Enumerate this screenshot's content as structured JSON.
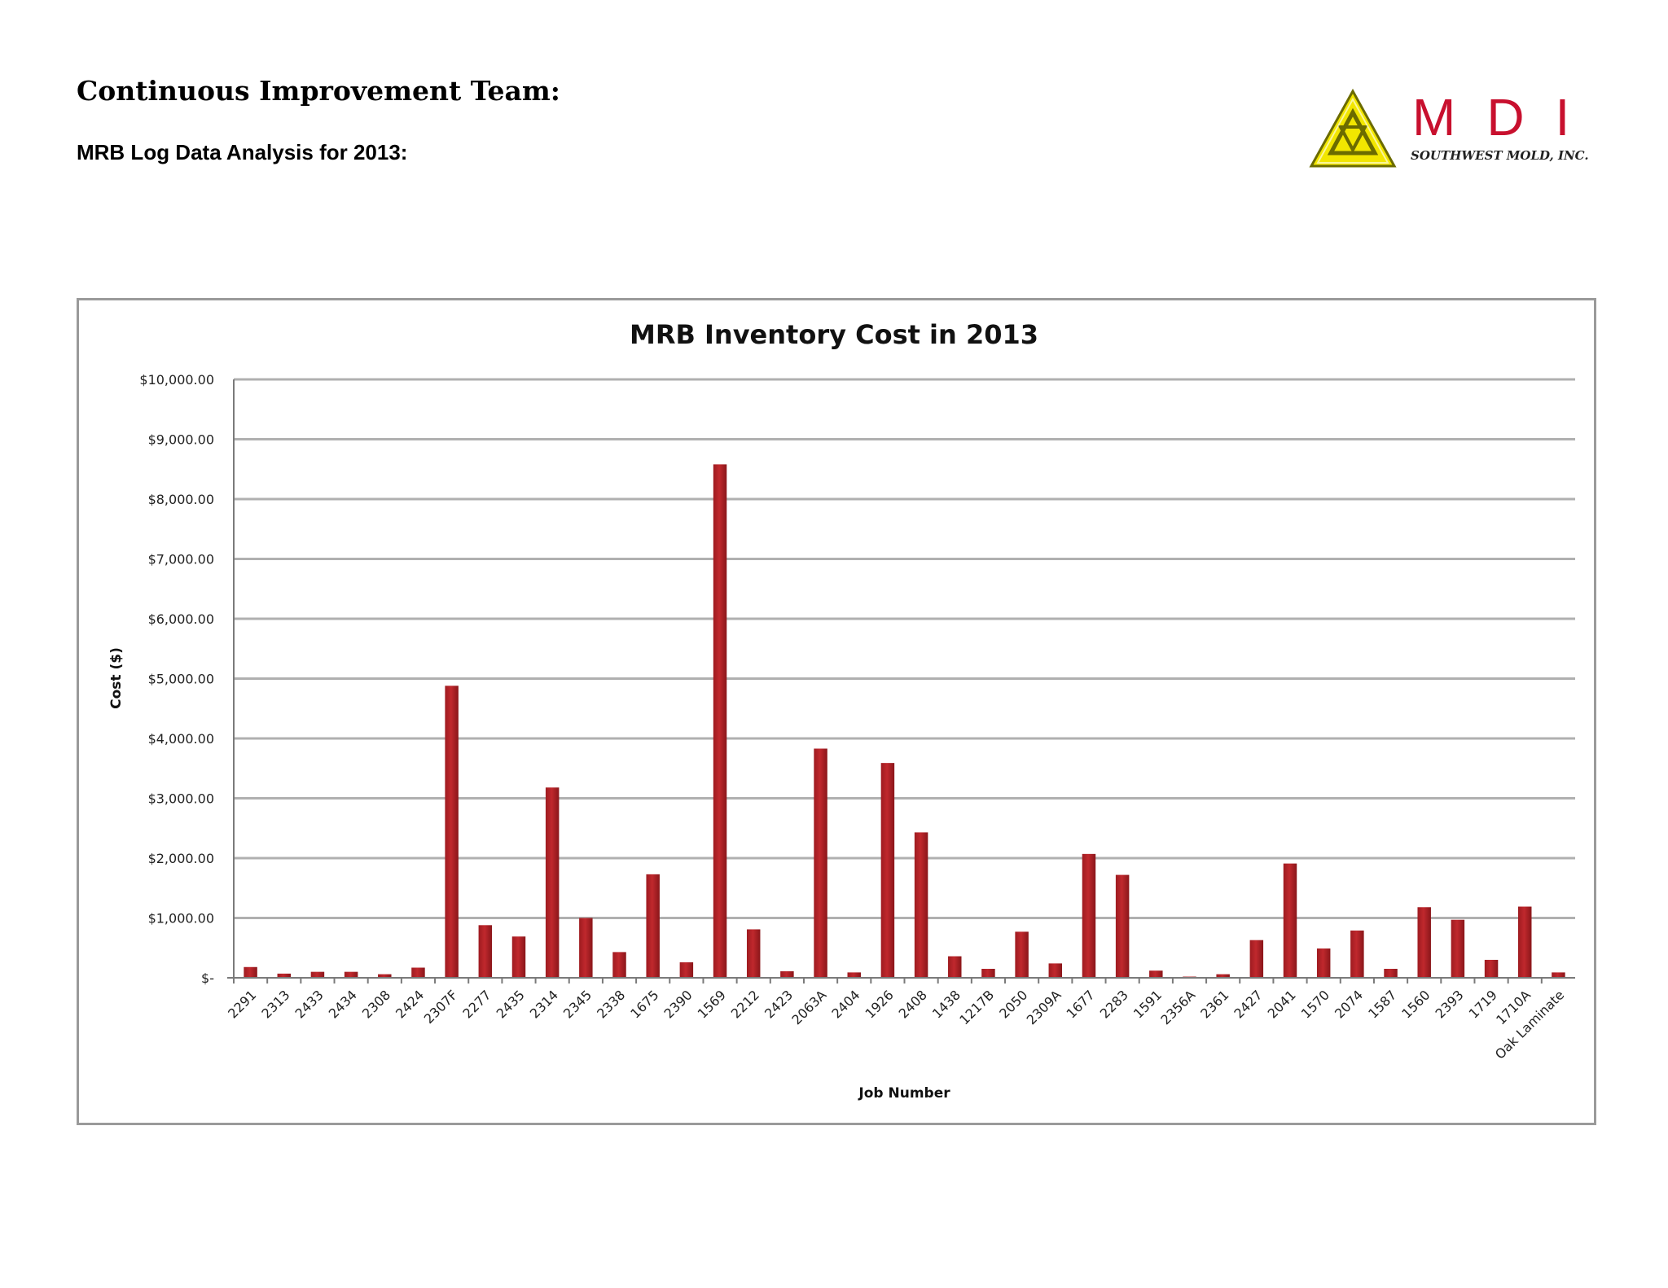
{
  "header": {
    "title": "Continuous Improvement Team:",
    "subtitle": "MRB Log Data Analysis for 2013:"
  },
  "logo": {
    "letters": "MDI",
    "company": "SOUTHWEST MOLD, INC."
  },
  "colors": {
    "bar": "#c0282d",
    "grid": "#b0b0b0",
    "frame": "#9a9a9a",
    "logo_red": "#c8102e",
    "logo_yellow": "#f2e600"
  },
  "chart_data": {
    "type": "bar",
    "title": "MRB Inventory Cost in 2013",
    "xlabel": "Job Number",
    "ylabel": "Cost ($)",
    "ylim": [
      0,
      10000
    ],
    "yticks": [
      0,
      1000,
      2000,
      3000,
      4000,
      5000,
      6000,
      7000,
      8000,
      9000,
      10000
    ],
    "ytick_labels": [
      "$-",
      "$1,000.00",
      "$2,000.00",
      "$3,000.00",
      "$4,000.00",
      "$5,000.00",
      "$6,000.00",
      "$7,000.00",
      "$8,000.00",
      "$9,000.00",
      "$10,000.00"
    ],
    "grid": true,
    "categories": [
      "2291",
      "2313",
      "2433",
      "2434",
      "2308",
      "2424",
      "2307F",
      "2277",
      "2435",
      "2314",
      "2345",
      "2338",
      "1675",
      "2390",
      "1569",
      "2212",
      "2423",
      "2063A",
      "2404",
      "1926",
      "2408",
      "1438",
      "1217B",
      "2050",
      "2309A",
      "1677",
      "2283",
      "1591",
      "2356A",
      "2361",
      "2427",
      "2041",
      "1570",
      "2074",
      "1587",
      "1560",
      "2393",
      "1719",
      "1710A",
      "Oak Laminate"
    ],
    "values": [
      180,
      70,
      100,
      100,
      60,
      170,
      4880,
      880,
      690,
      3180,
      1000,
      430,
      1730,
      260,
      8580,
      810,
      110,
      3830,
      90,
      3590,
      2430,
      360,
      150,
      770,
      240,
      2070,
      1720,
      120,
      20,
      60,
      630,
      1910,
      490,
      790,
      150,
      1180,
      970,
      300,
      1190,
      90
    ]
  }
}
